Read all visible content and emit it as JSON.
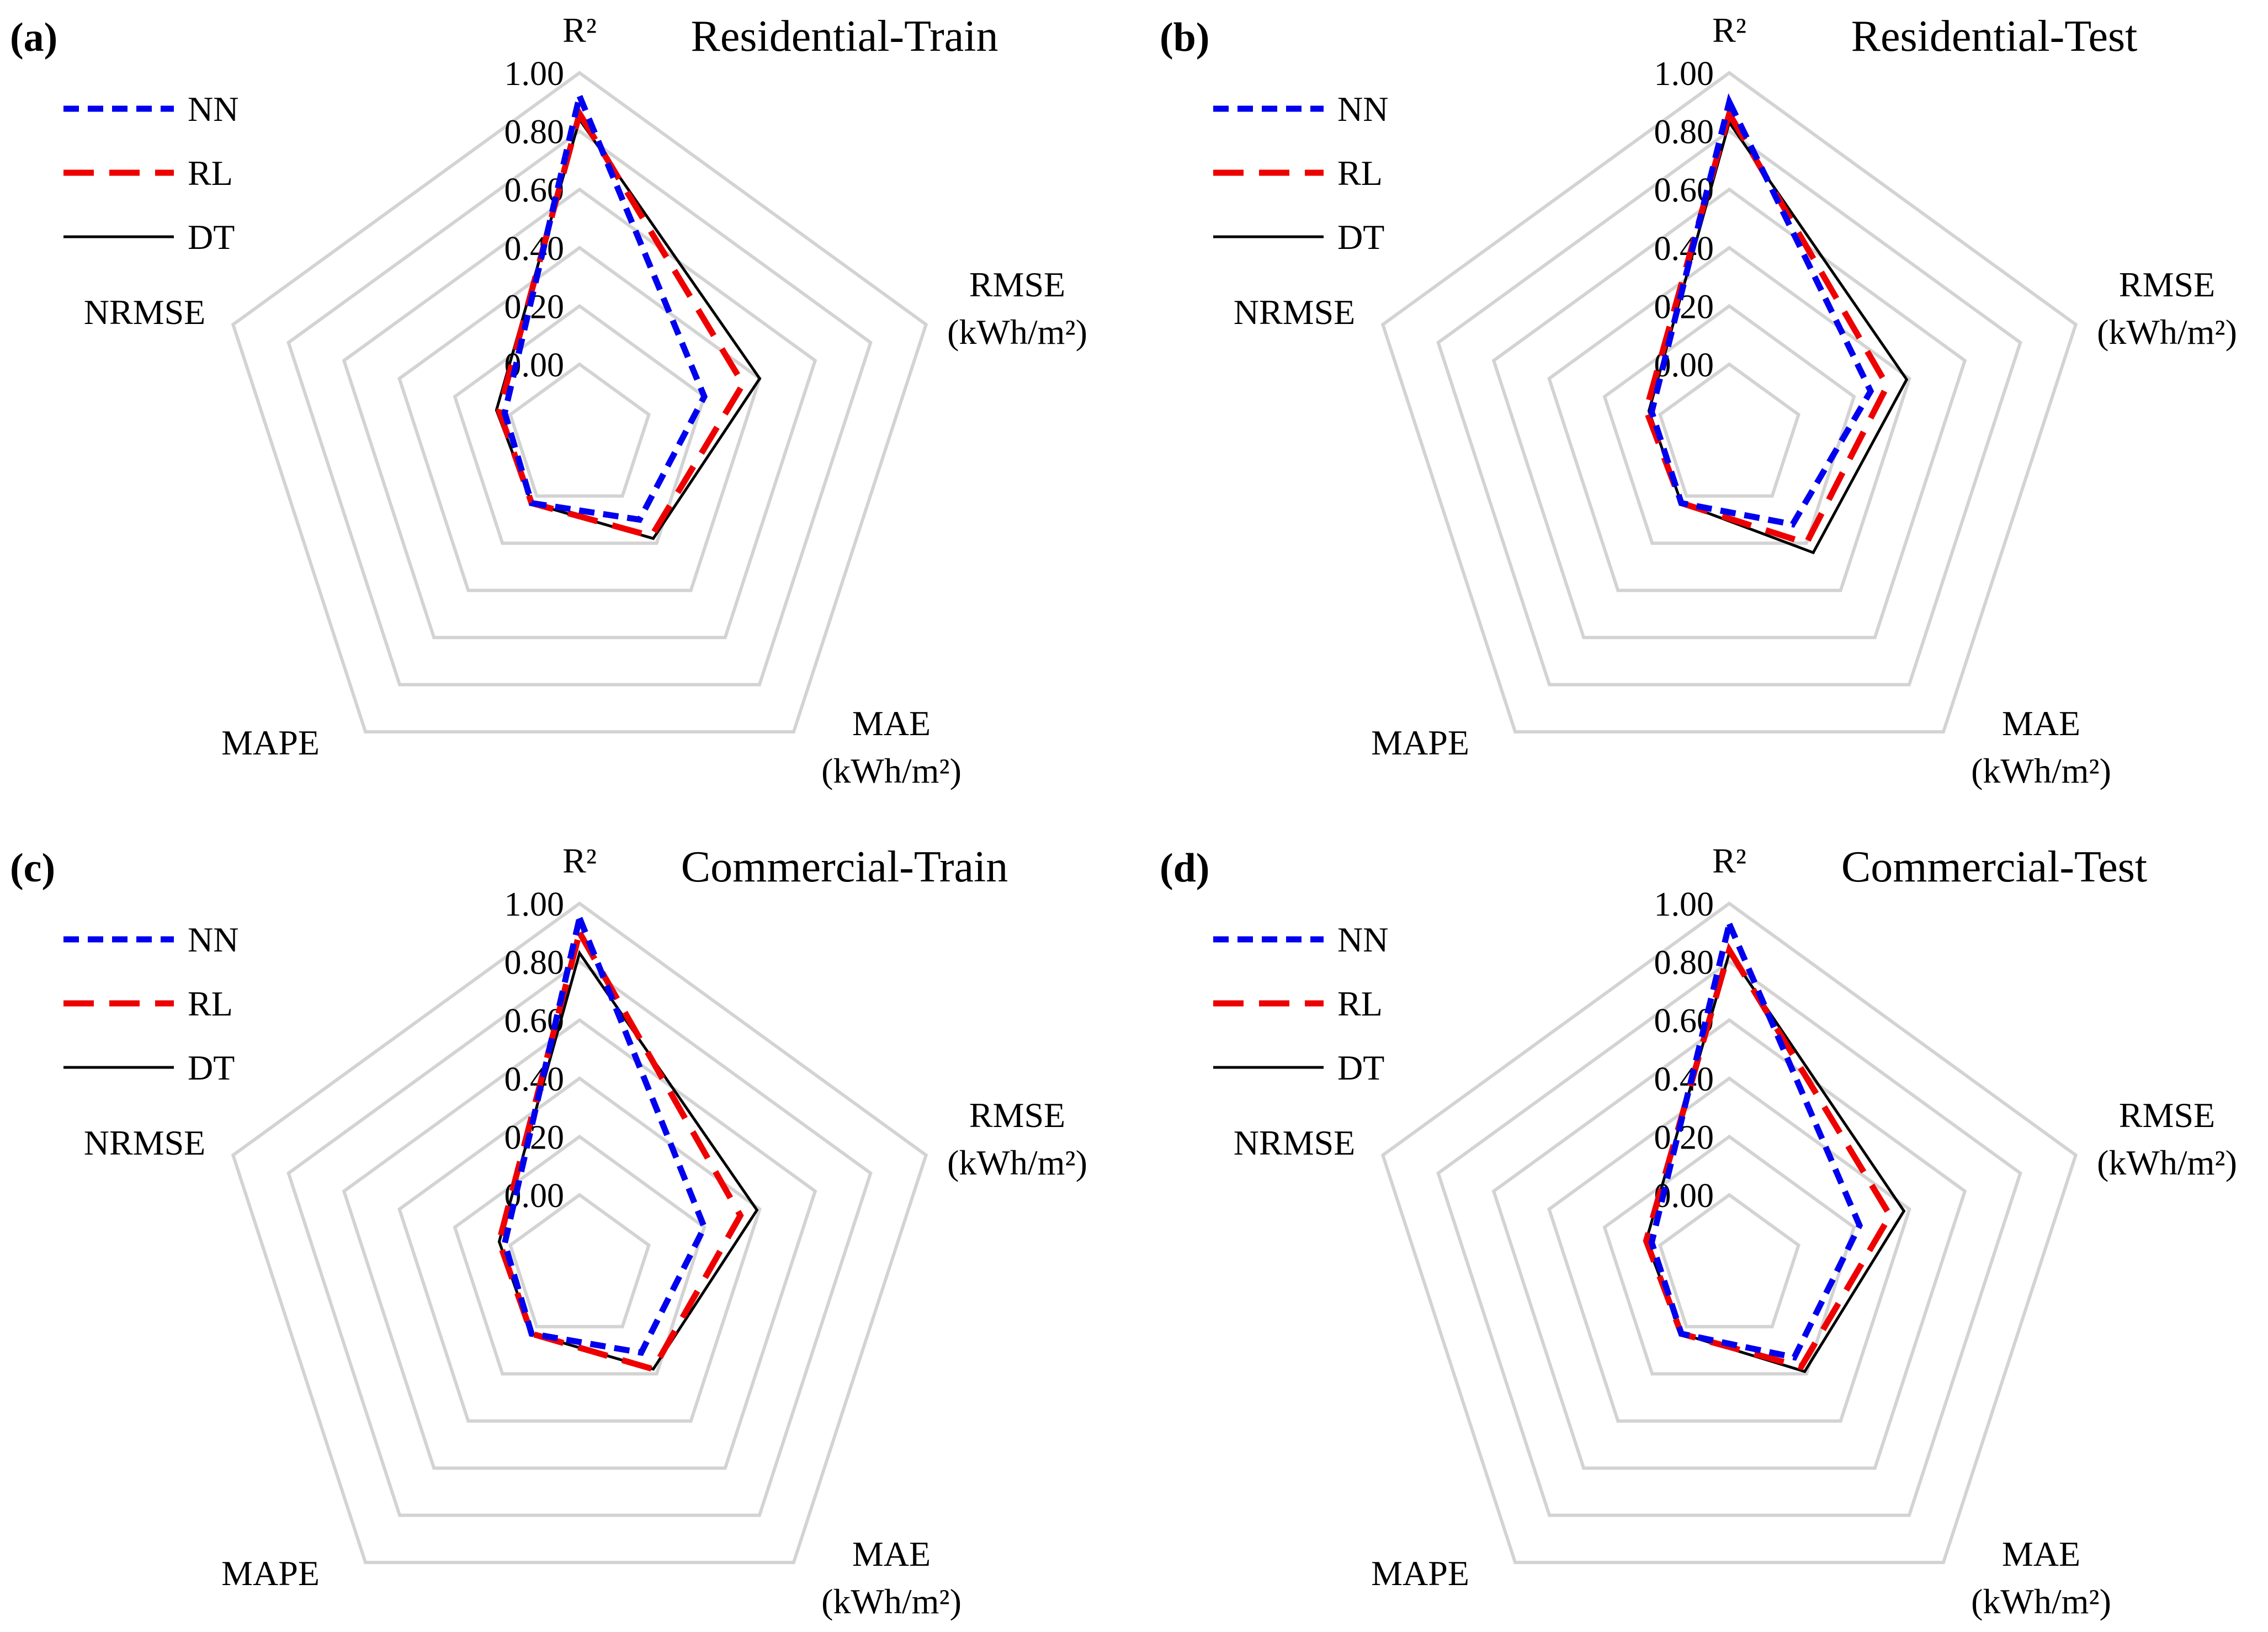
{
  "chart_data": [
    {
      "panel": "(a)",
      "type": "radar",
      "title": "Residential-Train",
      "axes": [
        "R²",
        "RMSE\n(kWh/m²)",
        "MAE\n(kWh/m²)",
        "MAPE",
        "NRMSE"
      ],
      "ticks": [
        "0.00",
        "0.20",
        "0.40",
        "0.60",
        "0.80",
        "1.00"
      ],
      "range": [
        0,
        1
      ],
      "series": [
        {
          "name": "NN",
          "values": [
            0.92,
            0.2,
            0.1,
            0.03,
            0.02
          ],
          "color": "#0000ee",
          "dash": "dashed"
        },
        {
          "name": "RL",
          "values": [
            0.86,
            0.34,
            0.17,
            0.03,
            0.04
          ],
          "color": "#ee0000",
          "dash": "long-dashed"
        },
        {
          "name": "DT",
          "values": [
            0.84,
            0.4,
            0.18,
            0.03,
            0.05
          ],
          "color": "#000000",
          "dash": "solid"
        }
      ]
    },
    {
      "panel": "(b)",
      "type": "radar",
      "title": "Residential-Test",
      "axes": [
        "R²",
        "RMSE\n(kWh/m²)",
        "MAE\n(kWh/m²)",
        "MAPE",
        "NRMSE"
      ],
      "ticks": [
        "0.00",
        "0.20",
        "0.40",
        "0.60",
        "0.80",
        "1.00"
      ],
      "range": [
        0,
        1
      ],
      "series": [
        {
          "name": "NN",
          "values": [
            0.9,
            0.26,
            0.12,
            0.03,
            0.03
          ],
          "color": "#0000ee",
          "dash": "dashed"
        },
        {
          "name": "RL",
          "values": [
            0.86,
            0.32,
            0.2,
            0.03,
            0.05
          ],
          "color": "#ee0000",
          "dash": "long-dashed"
        },
        {
          "name": "DT",
          "values": [
            0.83,
            0.39,
            0.24,
            0.03,
            0.04
          ],
          "color": "#000000",
          "dash": "solid"
        }
      ]
    },
    {
      "panel": "(c)",
      "type": "radar",
      "title": "Commercial-Train",
      "axes": [
        "R²",
        "RMSE\n(kWh/m²)",
        "MAE\n(kWh/m²)",
        "MAPE",
        "NRMSE"
      ],
      "ticks": [
        "0.00",
        "0.20",
        "0.40",
        "0.60",
        "0.80",
        "1.00"
      ],
      "range": [
        0,
        1
      ],
      "series": [
        {
          "name": "NN",
          "values": [
            0.95,
            0.2,
            0.11,
            0.03,
            0.02
          ],
          "color": "#0000ee",
          "dash": "dashed"
        },
        {
          "name": "RL",
          "values": [
            0.9,
            0.33,
            0.18,
            0.03,
            0.04
          ],
          "color": "#ee0000",
          "dash": "long-dashed"
        },
        {
          "name": "DT",
          "values": [
            0.83,
            0.39,
            0.18,
            0.03,
            0.04
          ],
          "color": "#000000",
          "dash": "solid"
        }
      ]
    },
    {
      "panel": "(d)",
      "type": "radar",
      "title": "Commercial-Test",
      "axes": [
        "R²",
        "RMSE\n(kWh/m²)",
        "MAE\n(kWh/m²)",
        "MAPE",
        "NRMSE"
      ],
      "ticks": [
        "0.00",
        "0.20",
        "0.40",
        "0.60",
        "0.80",
        "1.00"
      ],
      "range": [
        0,
        1
      ],
      "series": [
        {
          "name": "NN",
          "values": [
            0.93,
            0.22,
            0.13,
            0.03,
            0.03
          ],
          "color": "#0000ee",
          "dash": "dashed"
        },
        {
          "name": "RL",
          "values": [
            0.84,
            0.33,
            0.17,
            0.03,
            0.05
          ],
          "color": "#ee0000",
          "dash": "long-dashed"
        },
        {
          "name": "DT",
          "values": [
            0.83,
            0.38,
            0.19,
            0.03,
            0.05
          ],
          "color": "#000000",
          "dash": "solid"
        }
      ]
    }
  ]
}
